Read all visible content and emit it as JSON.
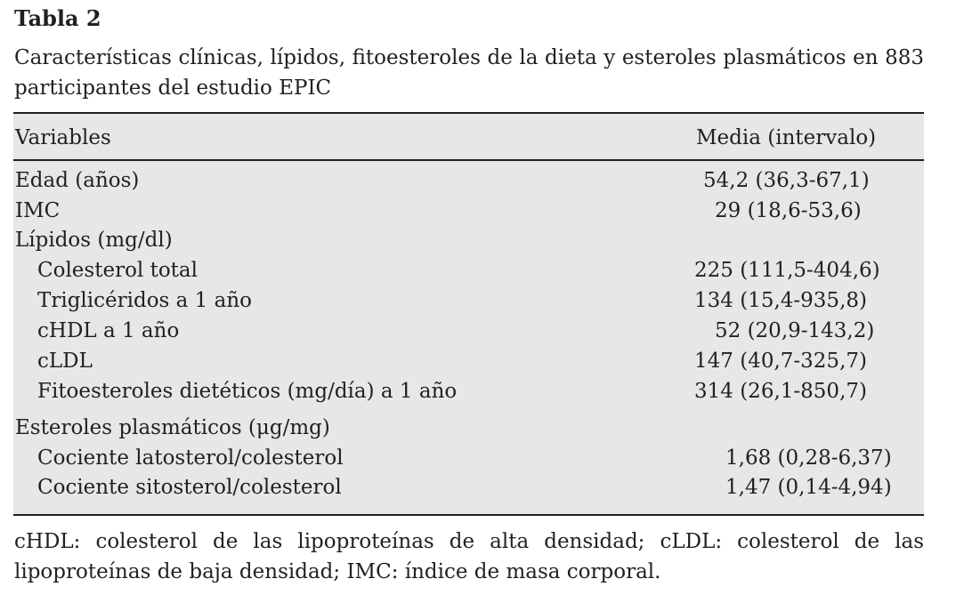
{
  "title": "Tabla 2",
  "caption": "Características clínicas, lípidos, fitoesteroles de la dieta y esteroles plasmáticos en 883 participantes del estudio EPIC",
  "table": {
    "headers": [
      "Variables",
      "Media (intervalo)"
    ],
    "rows": [
      {
        "label": "Edad (años)",
        "value": "54,2 (36,3-67,1)"
      },
      {
        "label": "IMC",
        "value": "29 (18,6-53,6)"
      },
      {
        "label": "Lípidos (mg/dl)",
        "value": ""
      },
      {
        "label": "Colesterol total",
        "value": "225 (111,5-404,6)"
      },
      {
        "label": "Triglicéridos a 1 año",
        "value": "134 (15,4-935,8)"
      },
      {
        "label": "cHDL a 1 año",
        "value": "52 (20,9-143,2)"
      },
      {
        "label": "cLDL",
        "value": "147 (40,7-325,7)"
      },
      {
        "label": "Fitoesteroles dietéticos (mg/día) a 1 año",
        "value": "314 (26,1-850,7)"
      },
      {
        "label": "Esteroles plasmáticos (μg/mg)",
        "value": ""
      },
      {
        "label": "Cociente latosterol/colesterol",
        "value": "1,68 (0,28-6,37)"
      },
      {
        "label": "Cociente sitosterol/colesterol",
        "value": "1,47 (0,14-4,94)"
      }
    ]
  },
  "footnote": "cHDL: colesterol de las lipoproteínas de alta densidad; cLDL: colesterol de las lipoproteínas de baja densidad; IMC: índice de masa corporal."
}
